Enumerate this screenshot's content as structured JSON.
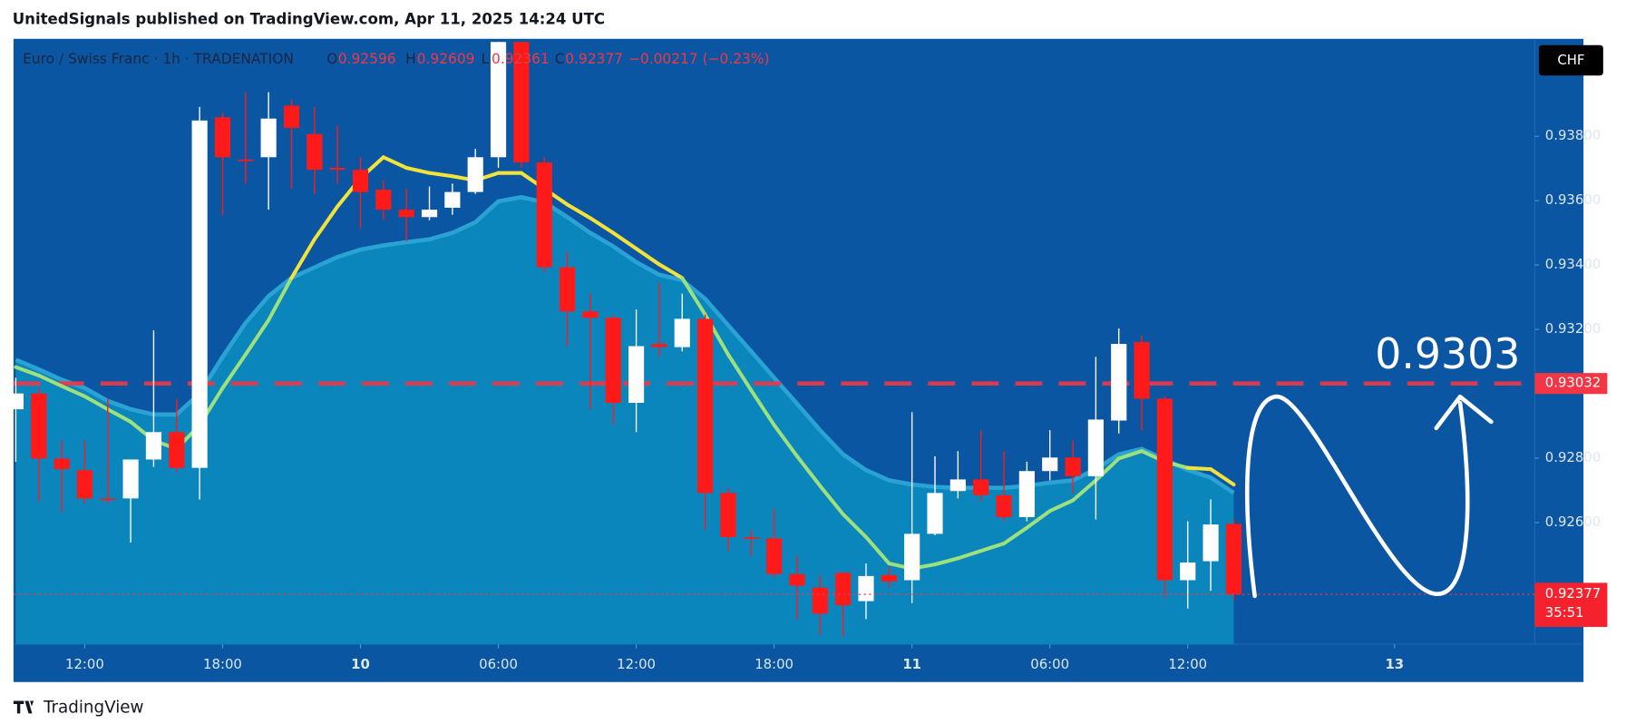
{
  "header": {
    "publisher": "UnitedSignals published on TradingView.com, Apr 11, 2025 14:24 UTC",
    "footer": "TradingView"
  },
  "chart_data": {
    "type": "candlestick",
    "symbol": "Euro / Swiss Franc · 1h · TRADENATION",
    "currency": "CHF",
    "ohlc_legend": {
      "o_label": "O",
      "o_value": "0.92596",
      "h_label": "H",
      "h_value": "0.92609",
      "l_label": "L",
      "l_value": "0.92361",
      "c_label": "C",
      "c_value": "0.92377",
      "change": "−0.00217 (−0.23%)"
    },
    "up_color": "#ffffff",
    "down_color": "#ff1a1a",
    "open": [
      0.92952,
      0.93001,
      0.92799,
      0.92763,
      0.92675,
      0.92675,
      0.92796,
      0.92881,
      0.9277,
      0.93859,
      0.93728,
      0.93735,
      0.93895,
      0.93807,
      0.93702,
      0.93696,
      0.93634,
      0.93572,
      0.93549,
      0.93578,
      0.93627,
      0.93735,
      0.94093,
      0.93719,
      0.93393,
      0.93256,
      0.93236,
      0.92972,
      0.93155,
      0.93145,
      0.93233,
      0.92692,
      0.92555,
      0.92551,
      0.9244,
      0.92398,
      0.92444,
      0.92356,
      0.92437,
      0.92421,
      0.92565,
      0.92698,
      0.92734,
      0.92685,
      0.92617,
      0.9276,
      0.92802,
      0.92744,
      0.92917,
      0.93161,
      0.92985,
      0.92421,
      0.9248,
      0.92596
    ],
    "high": [
      0.9305,
      0.93018,
      0.92855,
      0.92855,
      0.92985,
      0.92796,
      0.93197,
      0.92985,
      0.93891,
      0.93872,
      0.93937,
      0.93937,
      0.93914,
      0.93891,
      0.93833,
      0.93735,
      0.93663,
      0.93637,
      0.93644,
      0.93653,
      0.93761,
      0.94093,
      0.94093,
      0.93735,
      0.93441,
      0.93311,
      0.93246,
      0.93262,
      0.93344,
      0.93311,
      0.93246,
      0.92708,
      0.92578,
      0.92643,
      0.92496,
      0.92437,
      0.92447,
      0.92473,
      0.92463,
      0.92943,
      0.92806,
      0.92822,
      0.92887,
      0.92822,
      0.92789,
      0.92887,
      0.92855,
      0.93115,
      0.93203,
      0.93181,
      0.92992,
      0.92604,
      0.92672,
      0.92609
    ],
    "low": [
      0.92789,
      0.92666,
      0.92633,
      0.92659,
      0.92659,
      0.92538,
      0.92773,
      0.92757,
      0.92672,
      0.93556,
      0.93653,
      0.93572,
      0.93637,
      0.93621,
      0.93653,
      0.93513,
      0.93539,
      0.93474,
      0.93539,
      0.93556,
      0.93621,
      0.93702,
      0.93702,
      0.93376,
      0.93148,
      0.92952,
      0.92904,
      0.92881,
      0.93115,
      0.93132,
      0.92578,
      0.92512,
      0.92496,
      0.9243,
      0.923,
      0.92251,
      0.92245,
      0.923,
      0.92398,
      0.9235,
      0.92561,
      0.92675,
      0.92666,
      0.92604,
      0.92604,
      0.92731,
      0.92692,
      0.9261,
      0.92877,
      0.92887,
      0.92366,
      0.92333,
      0.92388,
      0.92361
    ],
    "close": [
      0.93001,
      0.92799,
      0.92766,
      0.92675,
      0.92672,
      0.92796,
      0.92881,
      0.9277,
      0.93849,
      0.93735,
      0.93725,
      0.93855,
      0.93826,
      0.93696,
      0.93696,
      0.93627,
      0.93572,
      0.93549,
      0.93572,
      0.93627,
      0.93735,
      0.94093,
      0.93719,
      0.93393,
      0.93256,
      0.93236,
      0.92972,
      0.93148,
      0.93145,
      0.93233,
      0.92692,
      0.92555,
      0.92551,
      0.9244,
      0.92404,
      0.92317,
      0.92343,
      0.92434,
      0.92417,
      0.92565,
      0.92692,
      0.92734,
      0.92685,
      0.92617,
      0.9276,
      0.92802,
      0.92744,
      0.9292,
      0.93155,
      0.92985,
      0.92421,
      0.92476,
      0.92594,
      0.92377
    ],
    "ma": {
      "values": [
        0.93083,
        0.93057,
        0.93024,
        0.92992,
        0.92952,
        0.92913,
        0.92855,
        0.92829,
        0.92903,
        0.93018,
        0.93122,
        0.93229,
        0.9336,
        0.9348,
        0.93582,
        0.9367,
        0.93735,
        0.93702,
        0.93686,
        0.93676,
        0.93663,
        0.93686,
        0.93686,
        0.93637,
        0.93588,
        0.93546,
        0.935,
        0.93451,
        0.93402,
        0.9336,
        0.93246,
        0.93122,
        0.93011,
        0.92903,
        0.92806,
        0.92714,
        0.92626,
        0.92555,
        0.92473,
        0.92457,
        0.9247,
        0.92489,
        0.92512,
        0.92535,
        0.92584,
        0.92636,
        0.92669,
        0.92731,
        0.92799,
        0.92822,
        0.92789,
        0.9277,
        0.92766,
        0.92718
      ],
      "color_above": "#f2e23a",
      "color_below": "#9ee07c"
    },
    "band": {
      "values": [
        0.93106,
        0.93076,
        0.93044,
        0.93018,
        0.92978,
        0.92952,
        0.92936,
        0.92936,
        0.93001,
        0.93115,
        0.9322,
        0.93304,
        0.9336,
        0.93393,
        0.93425,
        0.93448,
        0.93461,
        0.93471,
        0.9348,
        0.935,
        0.93533,
        0.93598,
        0.93611,
        0.93595,
        0.93549,
        0.935,
        0.93458,
        0.93409,
        0.9337,
        0.93353,
        0.93295,
        0.93213,
        0.93132,
        0.9305,
        0.92969,
        0.92887,
        0.92812,
        0.92763,
        0.92731,
        0.92718,
        0.92711,
        0.92708,
        0.92708,
        0.92708,
        0.92714,
        0.92724,
        0.92731,
        0.92766,
        0.92812,
        0.92829,
        0.92796,
        0.92763,
        0.9274,
        0.92692
      ],
      "color": "#0a86bd",
      "edge_color": "#2aa3d4"
    },
    "xlim": [
      -0.1,
      66.1
    ],
    "xticks": [
      {
        "value": 3,
        "label": "12:00"
      },
      {
        "value": 9,
        "label": "18:00"
      },
      {
        "value": 15,
        "label": "10"
      },
      {
        "value": 21,
        "label": "06:00"
      },
      {
        "value": 27,
        "label": "12:00"
      },
      {
        "value": 33,
        "label": "18:00"
      },
      {
        "value": 39,
        "label": "11"
      },
      {
        "value": 45,
        "label": "06:00"
      },
      {
        "value": 51,
        "label": "12:00"
      },
      {
        "value": 60,
        "label": "13"
      }
    ],
    "ylim": [
      0.92222,
      0.94093
    ],
    "yticks": [
      {
        "value": 0.926,
        "label": "0.92600"
      },
      {
        "value": 0.928,
        "label": "0.92800"
      },
      {
        "value": 0.932,
        "label": "0.93200"
      },
      {
        "value": 0.934,
        "label": "0.93400"
      },
      {
        "value": 0.936,
        "label": "0.93600"
      },
      {
        "value": 0.938,
        "label": "0.93800"
      }
    ],
    "level": {
      "value": 0.93032,
      "label": "0.93032",
      "color": "#f23645"
    },
    "last_price": {
      "value": 0.92377,
      "label": "0.92377",
      "countdown": "35:51"
    },
    "annotation": "0.9303"
  }
}
